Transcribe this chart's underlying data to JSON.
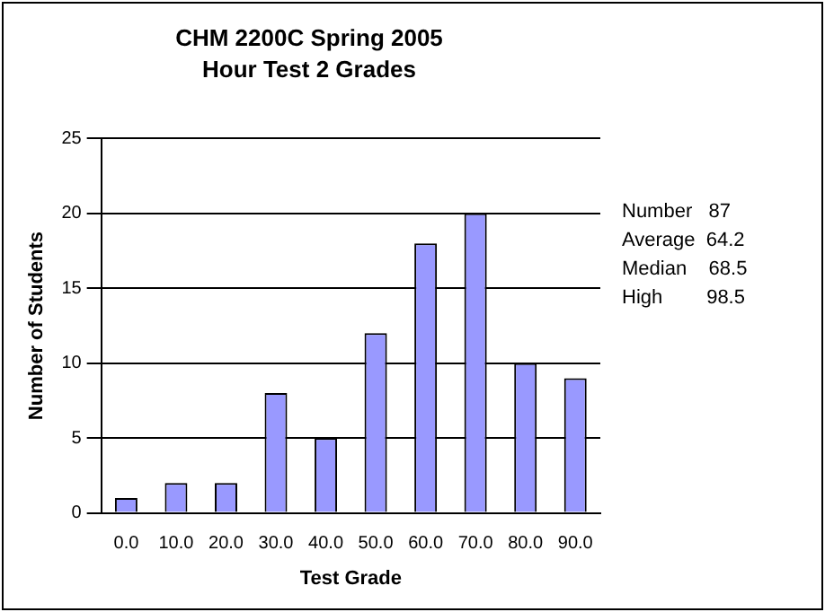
{
  "chart_data": {
    "type": "bar",
    "title": "CHM 2200C Spring 2005",
    "subtitle": "Hour Test 2 Grades",
    "xlabel": "Test Grade",
    "ylabel": "Number of Students",
    "categories": [
      "0.0",
      "10.0",
      "20.0",
      "30.0",
      "40.0",
      "50.0",
      "60.0",
      "70.0",
      "80.0",
      "90.0"
    ],
    "values": [
      1,
      2,
      2,
      8,
      5,
      12,
      18,
      20,
      10,
      9
    ],
    "color": "#9999ff",
    "ylim": [
      0,
      25
    ],
    "yticks": [
      0,
      5,
      10,
      15,
      20,
      25
    ],
    "grid": "y",
    "legend": false,
    "annotations": [
      "Number   87",
      "Average  64.2",
      "Median    68.5",
      "High        98.5"
    ]
  }
}
